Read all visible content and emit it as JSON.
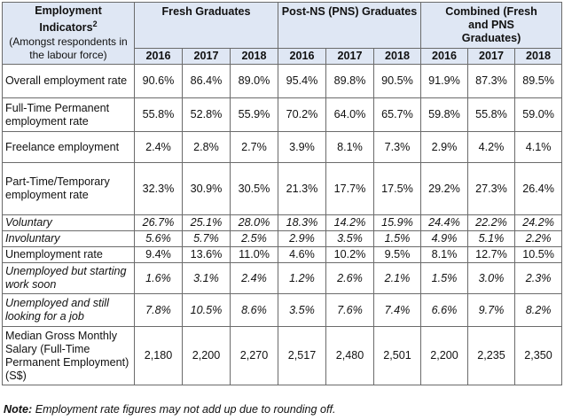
{
  "header": {
    "indicator_title": "Employment Indicators",
    "indicator_sup": "2",
    "indicator_sub": "(Amongst respondents in the labour force)",
    "groups": [
      "Fresh Graduates",
      "Post-NS (PNS) Graduates",
      "Combined (Fresh and PNS Graduates)"
    ],
    "years": [
      "2016",
      "2017",
      "2018",
      "2016",
      "2017",
      "2018",
      "2016",
      "2017",
      "2018"
    ]
  },
  "rows": [
    {
      "label": "Overall employment rate",
      "values": [
        "90.6%",
        "86.4%",
        "89.0%",
        "95.4%",
        "89.8%",
        "90.5%",
        "91.9%",
        "87.3%",
        "89.5%"
      ]
    },
    {
      "label": "Full-Time Permanent employment rate",
      "values": [
        "55.8%",
        "52.8%",
        "55.9%",
        "70.2%",
        "64.0%",
        "65.7%",
        "59.8%",
        "55.8%",
        "59.0%"
      ]
    },
    {
      "label": "Freelance employment",
      "values": [
        "2.4%",
        "2.8%",
        "2.7%",
        "3.9%",
        "8.1%",
        "7.3%",
        "2.9%",
        "4.2%",
        "4.1%"
      ]
    },
    {
      "label": "Part-Time/Temporary employment rate",
      "values": [
        "32.3%",
        "30.9%",
        "30.5%",
        "21.3%",
        "17.7%",
        "17.5%",
        "29.2%",
        "27.3%",
        "26.4%"
      ]
    },
    {
      "label": "Voluntary",
      "italic": true,
      "values": [
        "26.7%",
        "25.1%",
        "28.0%",
        "18.3%",
        "14.2%",
        "15.9%",
        "24.4%",
        "22.2%",
        "24.2%"
      ]
    },
    {
      "label": "Involuntary",
      "italic": true,
      "values": [
        "5.6%",
        "5.7%",
        "2.5%",
        "2.9%",
        "3.5%",
        "1.5%",
        "4.9%",
        "5.1%",
        "2.2%"
      ]
    },
    {
      "label": "Unemployment rate",
      "values": [
        "9.4%",
        "13.6%",
        "11.0%",
        "4.6%",
        "10.2%",
        "9.5%",
        "8.1%",
        "12.7%",
        "10.5%"
      ]
    },
    {
      "label": "Unemployed but starting work soon",
      "italic": true,
      "values": [
        "1.6%",
        "3.1%",
        "2.4%",
        "1.2%",
        "2.6%",
        "2.1%",
        "1.5%",
        "3.0%",
        "2.3%"
      ]
    },
    {
      "label": "Unemployed and still looking for a job",
      "italic": true,
      "values": [
        "7.8%",
        "10.5%",
        "8.6%",
        "3.5%",
        "7.6%",
        "7.4%",
        "6.6%",
        "9.7%",
        "8.2%"
      ]
    },
    {
      "label": "Median Gross Monthly Salary (Full-Time Permanent Employment) (S$)",
      "values": [
        "2,180",
        "2,200",
        "2,270",
        "2,517",
        "2,480",
        "2,501",
        "2,200",
        "2,235",
        "2,350"
      ]
    }
  ],
  "note": {
    "label": "Note:",
    "text": "Employment rate figures may not add up due to rounding off."
  }
}
